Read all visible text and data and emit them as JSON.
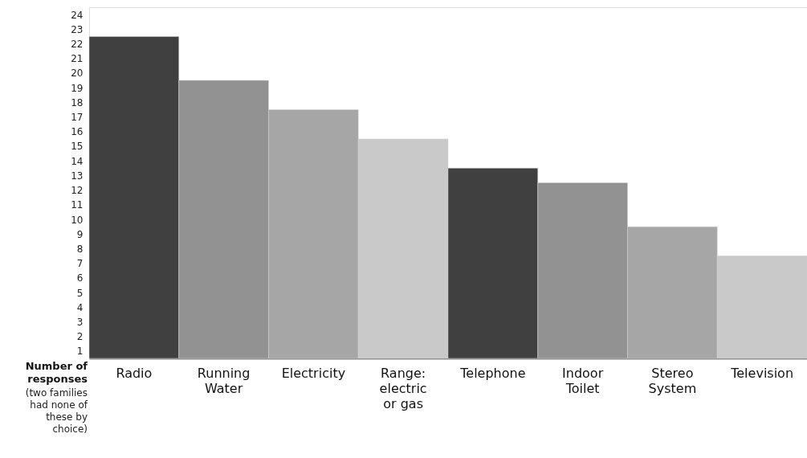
{
  "chart_data": {
    "type": "bar",
    "categories": [
      "Radio",
      "Running Water",
      "Electricity",
      "Range: electric or gas",
      "Telephone",
      "Indoor Toilet",
      "Stereo System",
      "Television"
    ],
    "values": [
      22,
      19,
      17,
      15,
      13,
      12,
      9,
      7
    ],
    "colors": [
      "#404040",
      "#929292",
      "#a6a6a6",
      "#c9c9c9",
      "#404040",
      "#929292",
      "#a6a6a6",
      "#c9c9c9"
    ],
    "ylim": [
      0,
      24
    ],
    "yticks": [
      {
        "value": 0.5,
        "label": "1"
      },
      {
        "value": 1.5,
        "label": "2"
      },
      {
        "value": 2.5,
        "label": "3"
      },
      {
        "value": 3.5,
        "label": "4"
      },
      {
        "value": 4.5,
        "label": "5"
      },
      {
        "value": 5.5,
        "label": "6"
      },
      {
        "value": 6.5,
        "label": "7"
      },
      {
        "value": 7.5,
        "label": "8"
      },
      {
        "value": 8.5,
        "label": "9"
      },
      {
        "value": 9.5,
        "label": "10"
      },
      {
        "value": 10.5,
        "label": "11"
      },
      {
        "value": 11.5,
        "label": "12"
      },
      {
        "value": 12.5,
        "label": "13"
      },
      {
        "value": 13.5,
        "label": "14"
      },
      {
        "value": 14.5,
        "label": "15"
      },
      {
        "value": 15.5,
        "label": "16"
      },
      {
        "value": 16.5,
        "label": "17"
      },
      {
        "value": 17.5,
        "label": "18"
      },
      {
        "value": 18.5,
        "label": "19"
      },
      {
        "value": 19.5,
        "label": "20"
      },
      {
        "value": 20.5,
        "label": "21"
      },
      {
        "value": 21.5,
        "label": "22"
      },
      {
        "value": 22.5,
        "label": "23"
      },
      {
        "value": 23.5,
        "label": "24"
      }
    ],
    "ylabel": "Number of responses",
    "annotations": [
      "(two families had none of these by choice)"
    ],
    "grid": false
  }
}
